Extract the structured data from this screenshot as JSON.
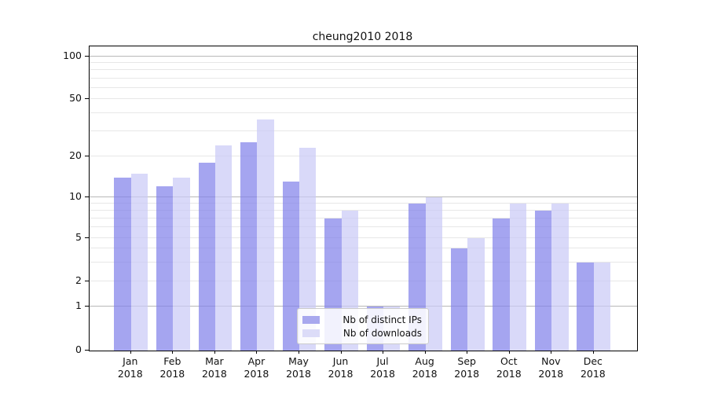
{
  "chart_data": {
    "type": "bar",
    "title": "cheung2010 2018",
    "categories": [
      "Jan",
      "Feb",
      "Mar",
      "Apr",
      "May",
      "Jun",
      "Jul",
      "Aug",
      "Sep",
      "Oct",
      "Nov",
      "Dec"
    ],
    "year_label": "2018",
    "series": [
      {
        "name": "Nb of distinct IPs",
        "key": "distinct-ips",
        "color": "rgba(130,130,234,0.72)",
        "legend_color": "#a8a8ee",
        "values": [
          14,
          12,
          18,
          25,
          13,
          7,
          1,
          9,
          4,
          7,
          8,
          3
        ]
      },
      {
        "name": "Nb of downloads",
        "key": "downloads",
        "color": "rgba(203,203,247,0.72)",
        "legend_color": "#dcdcf8",
        "values": [
          15,
          14,
          24,
          36,
          23,
          8,
          1,
          10,
          5,
          9,
          9,
          3
        ]
      }
    ],
    "xlabel": "",
    "ylabel": "",
    "y_scale": "symlog",
    "y_ticks": [
      0,
      1,
      2,
      5,
      10,
      20,
      50,
      100
    ],
    "ylim": [
      0,
      120
    ],
    "grid": true,
    "legend_position": "lower center"
  },
  "colors": {
    "grid_major": "#b8b8b8",
    "grid_minor": "#e7e7e7",
    "spine": "#000000",
    "text": "#111111",
    "background": "#ffffff"
  }
}
